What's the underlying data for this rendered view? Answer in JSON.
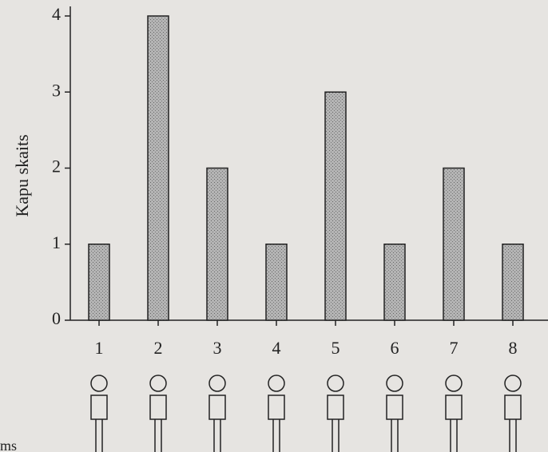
{
  "chart_data": {
    "type": "bar",
    "y_label": "Kapu skaits",
    "categories": [
      "1",
      "2",
      "3",
      "4",
      "5",
      "6",
      "7",
      "8"
    ],
    "values": [
      1,
      4,
      2,
      1,
      3,
      1,
      2,
      1
    ],
    "color": "#a3a3a3",
    "ylim": [
      0,
      4
    ],
    "yticks": [
      0,
      1,
      2,
      3,
      4
    ],
    "grid": false,
    "annotation": "ms"
  }
}
